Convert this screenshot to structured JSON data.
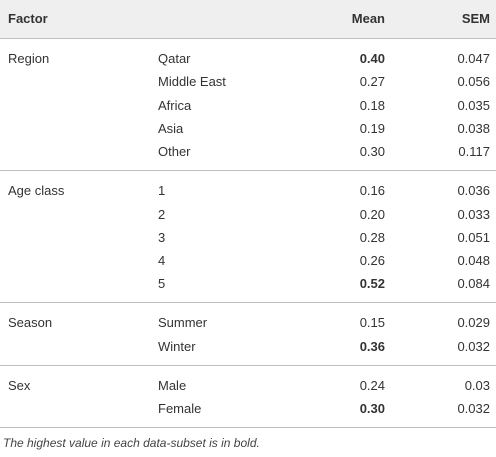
{
  "header": {
    "factor": "Factor",
    "mean": "Mean",
    "sem": "SEM"
  },
  "groups": [
    {
      "factor": "Region",
      "rows": [
        {
          "level": "Qatar",
          "mean": "0.40",
          "sem": "0.047",
          "bold": true
        },
        {
          "level": "Middle East",
          "mean": "0.27",
          "sem": "0.056",
          "bold": false
        },
        {
          "level": "Africa",
          "mean": "0.18",
          "sem": "0.035",
          "bold": false
        },
        {
          "level": "Asia",
          "mean": "0.19",
          "sem": "0.038",
          "bold": false
        },
        {
          "level": "Other",
          "mean": "0.30",
          "sem": "0.117",
          "bold": false
        }
      ]
    },
    {
      "factor": "Age class",
      "rows": [
        {
          "level": "1",
          "mean": "0.16",
          "sem": "0.036",
          "bold": false
        },
        {
          "level": "2",
          "mean": "0.20",
          "sem": "0.033",
          "bold": false
        },
        {
          "level": "3",
          "mean": "0.28",
          "sem": "0.051",
          "bold": false
        },
        {
          "level": "4",
          "mean": "0.26",
          "sem": "0.048",
          "bold": false
        },
        {
          "level": "5",
          "mean": "0.52",
          "sem": "0.084",
          "bold": true
        }
      ]
    },
    {
      "factor": "Season",
      "rows": [
        {
          "level": "Summer",
          "mean": "0.15",
          "sem": "0.029",
          "bold": false
        },
        {
          "level": "Winter",
          "mean": "0.36",
          "sem": "0.032",
          "bold": true
        }
      ]
    },
    {
      "factor": "Sex",
      "rows": [
        {
          "level": "Male",
          "mean": "0.24",
          "sem": "0.03",
          "bold": false
        },
        {
          "level": "Female",
          "mean": "0.30",
          "sem": "0.032",
          "bold": true
        }
      ]
    }
  ],
  "footnote": "The highest value in each data-subset is in bold."
}
